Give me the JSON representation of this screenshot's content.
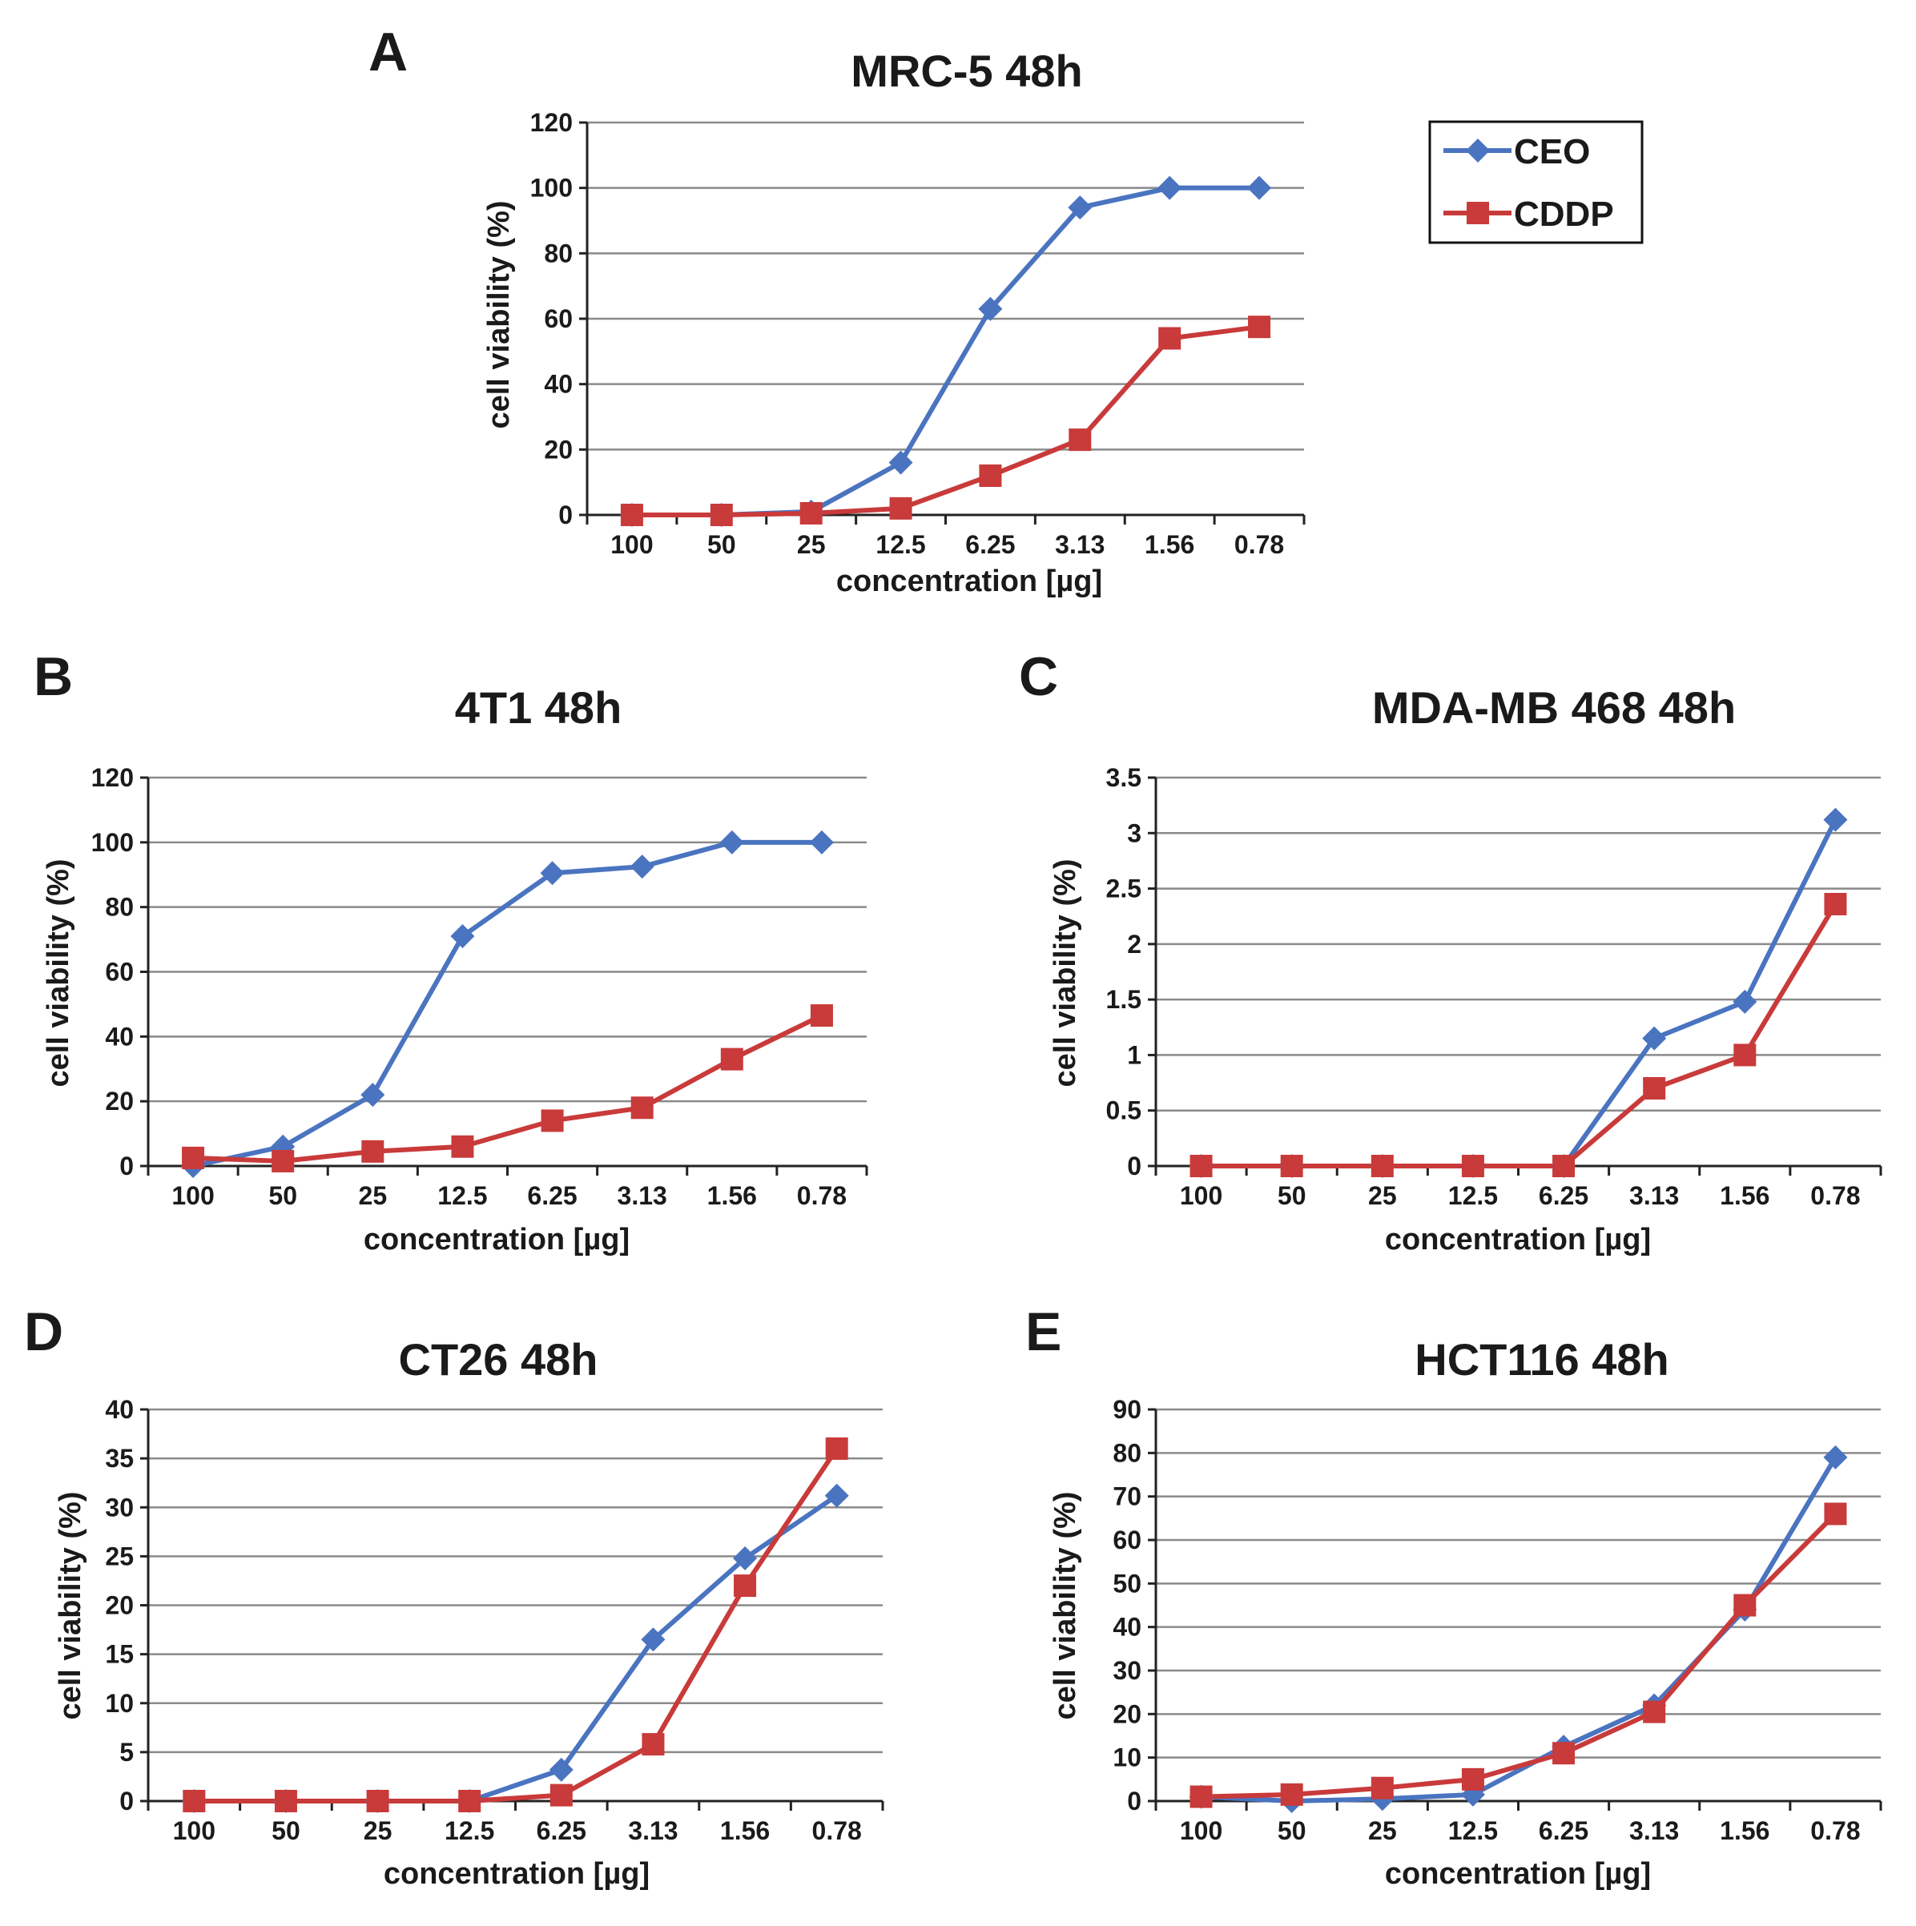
{
  "figure": {
    "legend": {
      "ceo": "CEO",
      "cddp": "CDDP"
    },
    "colors": {
      "ceo": "#4A74C0",
      "cddp": "#C93A3A",
      "grid": "#8a8a8a",
      "axis": "#222222"
    }
  },
  "chart_data": [
    {
      "id": "A",
      "panel": "A",
      "type": "line",
      "title": "MRC-5 48h",
      "xlabel": "concentration [µg]",
      "ylabel": "cell viability (%)",
      "categories": [
        "100",
        "50",
        "25",
        "12.5",
        "6.25",
        "3.13",
        "1.56",
        "0.78"
      ],
      "ylim": [
        0,
        120
      ],
      "yticks": [
        "0",
        "20",
        "40",
        "60",
        "80",
        "100",
        "120"
      ],
      "series": [
        {
          "name": "CEO",
          "marker": "diamond",
          "values": [
            0,
            0,
            1,
            16,
            63,
            94,
            100,
            100
          ]
        },
        {
          "name": "CDDP",
          "marker": "square",
          "values": [
            0,
            0,
            0.5,
            2,
            12,
            23,
            54,
            57.5
          ]
        }
      ]
    },
    {
      "id": "B",
      "panel": "B",
      "type": "line",
      "title": "4T1 48h",
      "xlabel": "concentration [µg]",
      "ylabel": "cell viability (%)",
      "categories": [
        "100",
        "50",
        "25",
        "12.5",
        "6.25",
        "3.13",
        "1.56",
        "0.78"
      ],
      "ylim": [
        0,
        120
      ],
      "yticks": [
        "0",
        "20",
        "40",
        "60",
        "80",
        "100",
        "120"
      ],
      "series": [
        {
          "name": "CEO",
          "marker": "diamond",
          "values": [
            0,
            6,
            22,
            71,
            90.5,
            92.5,
            100,
            100
          ]
        },
        {
          "name": "CDDP",
          "marker": "square",
          "values": [
            2.5,
            1.5,
            4.5,
            6,
            14,
            18,
            33,
            46.5
          ]
        }
      ]
    },
    {
      "id": "C",
      "panel": "C",
      "type": "line",
      "title": "MDA-MB 468 48h",
      "xlabel": "concentration [µg]",
      "ylabel": "cell viability (%)",
      "categories": [
        "100",
        "50",
        "25",
        "12.5",
        "6.25",
        "3.13",
        "1.56",
        "0.78"
      ],
      "ylim": [
        0,
        3.5
      ],
      "yticks": [
        "0",
        "0.5",
        "1",
        "1.5",
        "2",
        "2.5",
        "3",
        "3.5"
      ],
      "series": [
        {
          "name": "CEO",
          "marker": "diamond",
          "values": [
            0,
            0,
            0,
            0,
            0,
            1.15,
            1.48,
            3.12
          ]
        },
        {
          "name": "CDDP",
          "marker": "square",
          "values": [
            0,
            0,
            0,
            0,
            0,
            0.7,
            1.0,
            2.36
          ]
        }
      ]
    },
    {
      "id": "D",
      "panel": "D",
      "type": "line",
      "title": "CT26 48h",
      "xlabel": "concentration [µg]",
      "ylabel": "cell viability (%)",
      "categories": [
        "100",
        "50",
        "25",
        "12.5",
        "6.25",
        "3.13",
        "1.56",
        "0.78"
      ],
      "ylim": [
        0,
        40
      ],
      "yticks": [
        "0",
        "5",
        "10",
        "15",
        "20",
        "25",
        "30",
        "35",
        "40"
      ],
      "series": [
        {
          "name": "CEO",
          "marker": "diamond",
          "values": [
            0,
            0,
            0,
            0,
            3.2,
            16.5,
            24.8,
            31.2
          ]
        },
        {
          "name": "CDDP",
          "marker": "square",
          "values": [
            0,
            0,
            0,
            0,
            0.6,
            5.8,
            22,
            36
          ]
        }
      ]
    },
    {
      "id": "E",
      "panel": "E",
      "type": "line",
      "title": "HCT116 48h",
      "xlabel": "concentration [µg]",
      "ylabel": "cell viability (%)",
      "categories": [
        "100",
        "50",
        "25",
        "12.5",
        "6.25",
        "3.13",
        "1.56",
        "0.78"
      ],
      "ylim": [
        0,
        90
      ],
      "yticks": [
        "0",
        "10",
        "20",
        "30",
        "40",
        "50",
        "60",
        "70",
        "80",
        "90"
      ],
      "series": [
        {
          "name": "CEO",
          "marker": "diamond",
          "values": [
            1,
            0,
            0.5,
            1.5,
            12.5,
            22,
            44,
            79
          ]
        },
        {
          "name": "CDDP",
          "marker": "square",
          "values": [
            1,
            1.5,
            3,
            5,
            11,
            20.5,
            45,
            66
          ]
        }
      ]
    }
  ]
}
